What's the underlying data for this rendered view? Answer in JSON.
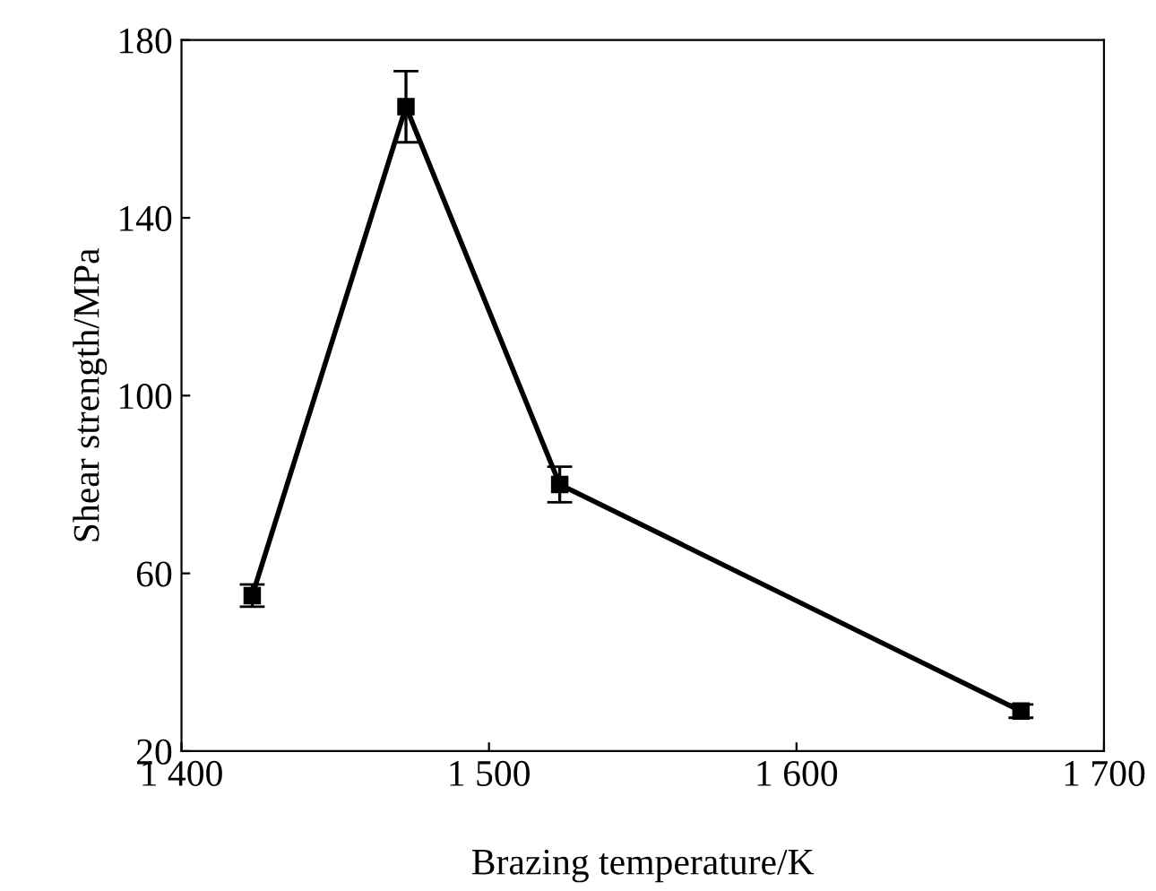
{
  "chart_data": {
    "type": "line",
    "xlabel": "Brazing temperature/K",
    "ylabel": "Shear strength/MPa",
    "x": [
      1423,
      1473,
      1523,
      1673
    ],
    "series": [
      {
        "color": "#000000",
        "values": [
          55,
          165,
          80,
          29
        ],
        "errors": [
          2.5,
          8,
          4,
          1.5
        ]
      }
    ],
    "xlim": [
      1400,
      1700
    ],
    "xticks": [
      {
        "value": 1400,
        "label": "1 400"
      },
      {
        "value": 1500,
        "label": "1 500"
      },
      {
        "value": 1600,
        "label": "1 600"
      },
      {
        "value": 1700,
        "label": "1 700"
      }
    ],
    "ylim": [
      20,
      180
    ],
    "yticks": [
      20,
      60,
      100,
      140,
      180
    ],
    "marker": "square",
    "line_style": "solid",
    "grid": false,
    "legend": false
  }
}
